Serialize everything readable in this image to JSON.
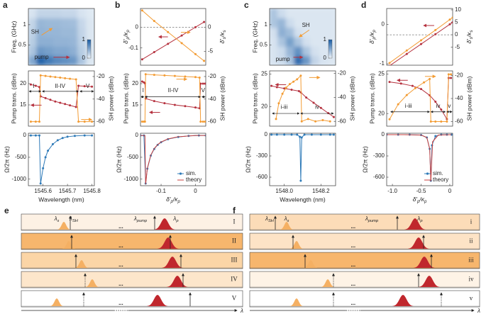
{
  "chart_data": [
    {
      "type": "heatmap",
      "panel": "a",
      "ylabel": "Freq. (GHz)",
      "xlim": [
        1545.54,
        1545.81
      ],
      "ylim": [
        0,
        1.4
      ],
      "yticks": [
        0.5,
        1
      ],
      "z": [
        [
          0.5,
          0.95,
          0.8,
          0.7,
          0.65,
          0.6,
          0.3,
          0.08
        ],
        [
          0.3,
          0.6,
          0.55,
          0.5,
          0.5,
          0.45,
          0.25,
          0.08
        ],
        [
          0.25,
          0.45,
          0.45,
          0.42,
          0.42,
          0.4,
          0.22,
          0.08
        ],
        [
          0.22,
          0.42,
          0.4,
          0.4,
          0.38,
          0.38,
          0.2,
          0.08
        ],
        [
          0.2,
          0.4,
          0.38,
          0.38,
          0.36,
          0.35,
          0.18,
          0.08
        ],
        [
          0.1,
          0.2,
          0.2,
          0.2,
          0.18,
          0.18,
          0.1,
          0.06
        ]
      ],
      "cblim": [
        0,
        1
      ],
      "cbticks": [
        1,
        0
      ],
      "annotations": [
        {
          "text": "SH",
          "color": "#f39c34"
        },
        {
          "text": "pump",
          "color": "#b5313e"
        }
      ]
    },
    {
      "type": "line",
      "ylabel": "Pump trans. (dBm)",
      "y2label": "SH power (dBm)",
      "xlim": [
        1545.54,
        1545.81
      ],
      "ylim": [
        10,
        23
      ],
      "yticks": [
        15,
        20
      ],
      "y2lim": [
        -64,
        -15
      ],
      "y2ticks": [
        -20,
        -40,
        -60
      ],
      "series": [
        {
          "color": "#b5313e",
          "markers": true,
          "x": [
            1545.55,
            1545.57,
            1545.585,
            1545.59,
            1545.61,
            1545.63,
            1545.65,
            1545.67,
            1545.69,
            1545.71,
            1545.735,
            1545.745,
            1545.77,
            1545.8
          ],
          "values": [
            19.8,
            19.5,
            19.2,
            17,
            16.6,
            16.2,
            15.8,
            15.5,
            15.2,
            14.9,
            14.5,
            19.5,
            19.4,
            19.3
          ]
        },
        {
          "color": "#f39c34",
          "markers": true,
          "axis": "y2",
          "x": [
            1545.55,
            1545.57,
            1545.585,
            1545.59,
            1545.61,
            1545.63,
            1545.65,
            1545.67,
            1545.69,
            1545.71,
            1545.735,
            1545.745,
            1545.77,
            1545.8
          ],
          "values": [
            -60,
            -60,
            -60,
            -19,
            -19.5,
            -20,
            -20.5,
            -21,
            -21.5,
            -22,
            -22.5,
            -60,
            -60,
            -60
          ]
        }
      ],
      "annotations": [
        {
          "text": "I"
        },
        {
          "text": "II-IV"
        },
        {
          "text": "V"
        }
      ]
    },
    {
      "type": "line",
      "ylabel": "Ω/2π (Hz)",
      "xlabel": "Wavelength (nm)",
      "xlim": [
        1545.54,
        1545.81
      ],
      "xticks": [
        1545.6,
        1545.7,
        1545.8
      ],
      "ylim": [
        -1150,
        50
      ],
      "yticks": [
        0,
        -500,
        -1000
      ],
      "series": [
        {
          "color": "#2e7ab8",
          "markers": true,
          "x": [
            1545.55,
            1545.57,
            1545.585,
            1545.59,
            1545.6,
            1545.61,
            1545.62,
            1545.64,
            1545.66,
            1545.68,
            1545.7,
            1545.73,
            1545.77,
            1545.8
          ],
          "values": [
            0,
            0,
            0,
            -1100,
            -750,
            -500,
            -350,
            -200,
            -110,
            -60,
            -30,
            -10,
            0,
            0
          ]
        }
      ]
    },
    {
      "type": "line",
      "panel": "b",
      "ylabel": [
        "δ′",
        "p",
        "/κ",
        "p"
      ],
      "y2label": [
        "δ′",
        "s",
        "/κ",
        "s"
      ],
      "xlim": [
        -0.16,
        0.03
      ],
      "ylim": [
        -0.183,
        0.09
      ],
      "yticks": [
        0,
        -0.1
      ],
      "y2lim": [
        -7.9,
        3.9
      ],
      "y2ticks": [
        0,
        -5
      ],
      "hline": {
        "value": 0,
        "axis": "y"
      },
      "series": [
        {
          "color": "#b5313e",
          "markers": true,
          "x": [
            -0.155,
            -0.12,
            -0.08,
            -0.04,
            0,
            0.025
          ],
          "values": [
            -0.155,
            -0.12,
            -0.08,
            -0.04,
            0,
            0.025
          ]
        },
        {
          "color": "#f39c34",
          "markers": true,
          "axis": "y2",
          "x": [
            -0.155,
            -0.12,
            -0.08,
            -0.04,
            0,
            0.025
          ],
          "values": [
            3.5,
            1.3,
            -1,
            -3.3,
            -5.6,
            -7
          ]
        }
      ]
    },
    {
      "type": "line",
      "ylabel": "Pump trans. (dBm)",
      "y2label": "SH power (dBm)",
      "xlim": [
        -0.16,
        0.03
      ],
      "ylim": [
        10,
        23
      ],
      "yticks": [
        15,
        20
      ],
      "y2lim": [
        -64,
        -15
      ],
      "y2ticks": [
        -20,
        -40,
        -60
      ],
      "series": [
        {
          "color": "#b5313e",
          "markers": true,
          "x": [
            -0.155,
            -0.15,
            -0.147,
            -0.145,
            -0.12,
            -0.09,
            -0.06,
            -0.03,
            0,
            0.012,
            0.015,
            0.022,
            0.028
          ],
          "values": [
            20.5,
            20.3,
            20.1,
            16.5,
            15.9,
            15.4,
            15,
            14.7,
            14.4,
            14.2,
            20,
            20,
            20
          ]
        },
        {
          "color": "#f39c34",
          "markers": true,
          "axis": "y2",
          "x": [
            -0.155,
            -0.15,
            -0.147,
            -0.145,
            -0.12,
            -0.09,
            -0.06,
            -0.03,
            0,
            0.012,
            0.015,
            0.022,
            0.028
          ],
          "values": [
            -60,
            -60,
            -60,
            -18,
            -18.5,
            -19,
            -19.5,
            -20,
            -20.5,
            -21,
            -60,
            -60,
            -60
          ]
        }
      ],
      "annotations": [
        {
          "text": "I"
        },
        {
          "text": "II-IV"
        },
        {
          "text": "V"
        }
      ]
    },
    {
      "type": "line",
      "ylabel": "Ω/2π (Hz)",
      "xlabel": [
        "δ′",
        "p",
        "/κ",
        "p"
      ],
      "xlim": [
        -0.16,
        0.03
      ],
      "xticks": [
        -0.1,
        0
      ],
      "ylim": [
        -1150,
        50
      ],
      "yticks": [
        0,
        -500,
        -1000
      ],
      "legend": "lower right",
      "series": [
        {
          "name": "sim.",
          "color": "#2e7ab8",
          "markers": true,
          "x": [
            -0.16,
            -0.15,
            -0.145,
            -0.14,
            -0.13,
            -0.12,
            -0.11,
            -0.1,
            -0.08,
            -0.05,
            -0.02,
            0.01,
            0.03
          ],
          "values": [
            0,
            0,
            -1100,
            -760,
            -460,
            -310,
            -215,
            -155,
            -85,
            -35,
            -10,
            0,
            0
          ]
        },
        {
          "name": "theory",
          "color": "#c9413f",
          "markers": false,
          "x": [
            -0.16,
            -0.147,
            -0.145,
            -0.14,
            -0.13,
            -0.12,
            -0.11,
            -0.1,
            -0.08,
            -0.05,
            0,
            0.03
          ],
          "values": [
            0,
            0,
            -1120,
            -750,
            -450,
            -300,
            -210,
            -150,
            -80,
            -30,
            0,
            0
          ]
        }
      ]
    },
    {
      "type": "heatmap",
      "panel": "c",
      "ylabel": "Freq. (GHz)",
      "xlim": [
        1547.92,
        1548.28
      ],
      "ylim": [
        0,
        1.4
      ],
      "yticks": [
        0.5,
        1
      ],
      "z": [
        [
          0.1,
          0.15,
          0.3,
          0.9,
          0.6,
          0.2,
          0.1,
          0.08
        ],
        [
          0.1,
          0.15,
          0.4,
          0.65,
          0.3,
          0.12,
          0.08,
          0.08
        ],
        [
          0.1,
          0.3,
          0.55,
          0.3,
          0.12,
          0.08,
          0.08,
          0.08
        ],
        [
          0.12,
          0.45,
          0.35,
          0.12,
          0.08,
          0.08,
          0.08,
          0.08
        ],
        [
          0.3,
          0.4,
          0.15,
          0.08,
          0.08,
          0.08,
          0.08,
          0.08
        ],
        [
          0.3,
          0.15,
          0.08,
          0.08,
          0.08,
          0.08,
          0.08,
          0.08
        ]
      ],
      "cblim": [
        0,
        1
      ],
      "cbticks": [
        1,
        0
      ],
      "annotations": [
        {
          "text": "SH",
          "color": "#f39c34"
        },
        {
          "text": "pump",
          "color": "#b5313e"
        }
      ]
    },
    {
      "type": "line",
      "ylabel": "Pump trans. (dBm)",
      "y2label": "SH power (dBm)",
      "xlim": [
        1547.92,
        1548.28
      ],
      "ylim": [
        17,
        25.5
      ],
      "yticks": [
        20,
        25
      ],
      "y2lim": [
        -64,
        -18
      ],
      "y2ticks": [
        -20,
        -40,
        -60
      ],
      "series": [
        {
          "color": "#b5313e",
          "markers": true,
          "x": [
            1547.93,
            1547.96,
            1548.0,
            1548.04,
            1548.08,
            1548.09,
            1548.12,
            1548.16,
            1548.2,
            1548.24,
            1548.27
          ],
          "values": [
            23.2,
            23,
            22.8,
            22.6,
            22.4,
            22.2,
            21.4,
            20.6,
            19.8,
            19,
            18.4
          ]
        },
        {
          "color": "#f39c34",
          "markers": true,
          "axis": "y2",
          "x": [
            1547.955,
            1547.97,
            1547.99,
            1548.01,
            1548.03,
            1548.05,
            1548.07,
            1548.09,
            1548.095,
            1548.13,
            1548.17,
            1548.21,
            1548.25
          ],
          "values": [
            -58,
            -45,
            -37,
            -32,
            -29,
            -27,
            -25,
            -22,
            -60,
            -58,
            -60,
            -59,
            -60
          ]
        }
      ],
      "annotations": [
        {
          "text": "i-iii"
        },
        {
          "text": "iv"
        }
      ]
    },
    {
      "type": "line",
      "ylabel": "Ω/2π (Hz)",
      "xlabel": "Wavelength (nm)",
      "xlim": [
        1547.92,
        1548.28
      ],
      "xticks": [
        {
          "value": 1548,
          "label": "1548.0"
        },
        1548.2
      ],
      "ylim": [
        -720,
        20
      ],
      "yticks": [
        0,
        -300,
        -600
      ],
      "series": [
        {
          "color": "#2e7ab8",
          "markers": true,
          "x": [
            1547.93,
            1547.96,
            1548.0,
            1548.04,
            1548.07,
            1548.085,
            1548.09,
            1548.095,
            1548.11,
            1548.15,
            1548.2,
            1548.25,
            1548.27
          ],
          "values": [
            0,
            0,
            0,
            0,
            0,
            -30,
            -650,
            -40,
            0,
            0,
            0,
            0,
            0
          ]
        }
      ]
    },
    {
      "type": "line",
      "panel": "d",
      "ylabel": [
        "δ′",
        "p",
        "/κ",
        "p"
      ],
      "y2label": [
        "δ′",
        "s",
        "/κ",
        "s"
      ],
      "xlim": [
        -1.1,
        0.05
      ],
      "ylim": [
        -1.035,
        0.4
      ],
      "yticks": [
        0,
        -1
      ],
      "y2lim": [
        -12.2,
        10.55
      ],
      "y2ticks": [
        10,
        5,
        0,
        -5
      ],
      "hline": {
        "value": 0,
        "axis": "y2"
      },
      "series": [
        {
          "color": "#b5313e",
          "markers": true,
          "x": [
            -1.05,
            -0.75,
            -0.5,
            -0.25,
            0,
            0.05
          ],
          "values": [
            -1.05,
            -0.75,
            -0.5,
            -0.25,
            0,
            0.05
          ]
        },
        {
          "color": "#f39c34",
          "markers": true,
          "axis": "y2",
          "x": [
            -1.05,
            -0.75,
            -0.5,
            -0.25,
            0,
            0.05
          ],
          "values": [
            -11.3,
            -6.3,
            -2.2,
            1.9,
            6.1,
            6.9
          ]
        }
      ]
    },
    {
      "type": "line",
      "ylabel": "Pump trans. (dBm)",
      "y2label": "SH power (dBm)",
      "xlim": [
        -1.1,
        0.05
      ],
      "ylim": [
        18.4,
        25.4
      ],
      "yticks": [
        20,
        25
      ],
      "y2lim": [
        -64,
        -16
      ],
      "y2ticks": [
        -20,
        -40,
        -60
      ],
      "series": [
        {
          "color": "#b5313e",
          "markers": true,
          "x": [
            -1.05,
            -0.85,
            -0.65,
            -0.5,
            -0.35,
            -0.25,
            -0.15,
            -0.05,
            -0.02,
            0.02
          ],
          "values": [
            24,
            23.8,
            23.5,
            23.1,
            22.3,
            21.5,
            20.5,
            19.3,
            24.5,
            24.5
          ]
        },
        {
          "color": "#f39c34",
          "markers": true,
          "axis": "y2",
          "x": [
            -1.05,
            -0.9,
            -0.75,
            -0.6,
            -0.45,
            -0.35,
            -0.33,
            -0.25,
            -0.15,
            -0.05,
            -0.02,
            0.02
          ],
          "values": [
            -58,
            -45,
            -37,
            -31,
            -26,
            -23,
            -60,
            -60,
            -60,
            -60,
            -19,
            -19
          ]
        }
      ],
      "annotations": [
        {
          "text": "i-iii"
        },
        {
          "text": "iv"
        },
        {
          "text": "v"
        }
      ]
    },
    {
      "type": "line",
      "ylabel": "Ω/2π (Hz)",
      "xlabel": [
        "δ′",
        "p",
        "/κ",
        "p"
      ],
      "xlim": [
        -1.1,
        0.05
      ],
      "xticks": [
        {
          "value": -1,
          "label": "-1.0"
        },
        -0.5,
        0
      ],
      "ylim": [
        -720,
        20
      ],
      "yticks": [
        0,
        -300,
        -600
      ],
      "legend": "lower right",
      "series": [
        {
          "name": "sim.",
          "color": "#2e7ab8",
          "markers": true,
          "x": [
            -1.1,
            -0.9,
            -0.7,
            -0.5,
            -0.4,
            -0.35,
            -0.33,
            -0.31,
            -0.25,
            -0.15,
            -0.05,
            0.03
          ],
          "values": [
            0,
            0,
            0,
            -5,
            -40,
            -200,
            -650,
            -150,
            -20,
            0,
            0,
            0
          ]
        },
        {
          "name": "theory",
          "color": "#c9413f",
          "markers": false,
          "x": [
            -1.1,
            -0.8,
            -0.5,
            -0.4,
            -0.35,
            -0.33,
            -0.3,
            -0.2,
            0.03
          ],
          "values": [
            0,
            0,
            -5,
            -40,
            -200,
            -660,
            -100,
            -5,
            0
          ]
        }
      ]
    }
  ],
  "schematics": [
    {
      "panel": "e",
      "rows": [
        "I",
        "II",
        "III",
        "IV",
        "V"
      ],
      "row_colors": [
        "#fdf1e4",
        "#f7b66d",
        "#fbd5a6",
        "#fde6cb",
        "#ffffff"
      ],
      "labels": [
        [
          "λ",
          "s"
        ],
        [
          "λ",
          "SH"
        ],
        [
          "λ",
          "pump"
        ],
        [
          "λ",
          "p"
        ]
      ],
      "ellipsis": "...",
      "axis": "λ"
    },
    {
      "panel": "f",
      "rows": [
        "i",
        "ii",
        "iii",
        "iv",
        "v"
      ],
      "row_colors": [
        "#fcdcb8",
        "#fde3c6",
        "#f7b66d",
        "#fef3e6",
        "#ffffff"
      ],
      "labels": [
        [
          "λ",
          "SH"
        ],
        [
          "λ",
          "s"
        ],
        [
          "λ",
          "pump"
        ],
        [
          "λ",
          "p"
        ]
      ],
      "ellipsis": "...",
      "axis": "λ"
    }
  ]
}
